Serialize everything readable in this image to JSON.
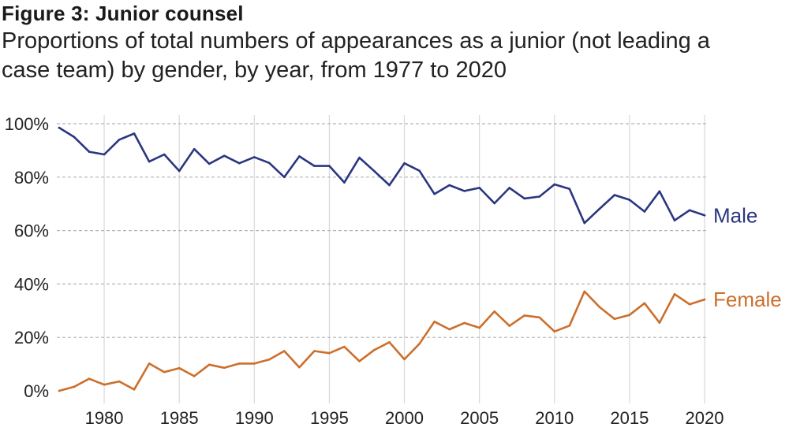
{
  "header": {
    "title": "Figure 3: Junior counsel",
    "subtitle": "Proportions of total numbers of appearances as a junior (not leading a case team) by gender, by year, from 1977 to 2020"
  },
  "colors": {
    "male": "#2b3680",
    "female": "#cc6f2c",
    "grid_h": "#b3b3b3",
    "grid_v": "#d9d9d9"
  },
  "chart_data": {
    "type": "line",
    "title": "Figure 3: Junior counsel",
    "subtitle": "Proportions of total numbers of appearances as a junior (not leading a case team) by gender, by year, from 1977 to 2020",
    "xlabel": "",
    "ylabel": "",
    "xlim": [
      1977,
      2020
    ],
    "ylim": [
      0,
      100
    ],
    "x_ticks": [
      1980,
      1985,
      1990,
      1995,
      2000,
      2005,
      2010,
      2015,
      2020
    ],
    "y_ticks": [
      0,
      20,
      40,
      60,
      80,
      100
    ],
    "y_tick_labels": [
      "0%",
      "20%",
      "40%",
      "60%",
      "80%",
      "100%"
    ],
    "grid": "horizontal dashed, vertical solid",
    "legend": "direct labels at line ends",
    "x": [
      1977,
      1978,
      1979,
      1980,
      1981,
      1982,
      1983,
      1984,
      1985,
      1986,
      1987,
      1988,
      1989,
      1990,
      1991,
      1992,
      1993,
      1994,
      1995,
      1996,
      1997,
      1998,
      1999,
      2000,
      2001,
      2002,
      2003,
      2004,
      2005,
      2006,
      2007,
      2008,
      2009,
      2010,
      2011,
      2012,
      2013,
      2014,
      2015,
      2016,
      2017,
      2018,
      2019,
      2020
    ],
    "series": [
      {
        "name": "Male",
        "color_key": "male",
        "values": [
          98.5,
          95,
          89.5,
          88.5,
          94,
          96.3,
          85.8,
          88.5,
          82.3,
          90.5,
          85,
          88,
          85.2,
          87.5,
          85.3,
          80,
          87.8,
          84.2,
          84.2,
          78,
          87.3,
          82.2,
          77,
          85.2,
          82.4,
          73.7,
          77,
          74.8,
          76,
          70.2,
          76,
          72,
          72.7,
          77.3,
          75.6,
          62.8,
          68.1,
          73.3,
          71.5,
          67.1,
          74.7,
          63.8,
          67.6,
          65.7
        ]
      },
      {
        "name": "Female",
        "color_key": "female",
        "values": [
          0,
          1.5,
          4.5,
          2.3,
          3.5,
          0.5,
          10.2,
          7,
          8.5,
          5.5,
          9.8,
          8.6,
          10.2,
          10.2,
          11.7,
          14.9,
          8.8,
          14.9,
          14.1,
          16.5,
          11.1,
          15.3,
          18.2,
          11.8,
          17.6,
          25.9,
          23,
          25.4,
          23.6,
          29.7,
          24.3,
          28.2,
          27.5,
          22.2,
          24.4,
          37.2,
          31.4,
          26.9,
          28.4,
          32.8,
          25.5,
          36.2,
          32.4,
          34.2
        ]
      }
    ]
  }
}
